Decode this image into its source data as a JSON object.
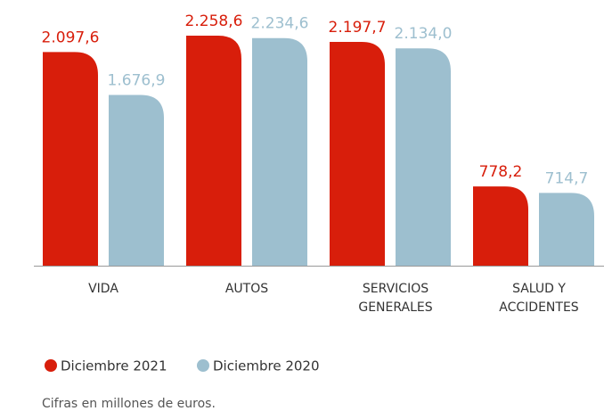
{
  "chart_data": {
    "type": "bar",
    "categories": [
      "VIDA",
      "AUTOS",
      "SERVICIOS GENERALES",
      "SALUD Y ACCIDENTES"
    ],
    "series": [
      {
        "name": "Diciembre 2021",
        "color": "#d81e0b",
        "values": [
          2097.6,
          2258.6,
          2197.7,
          778.2
        ],
        "value_labels": [
          "2.097,6",
          "2.258,6",
          "2.197,7",
          "778,2"
        ]
      },
      {
        "name": "Diciembre 2020",
        "color": "#9dbfcf",
        "values": [
          1676.9,
          2234.6,
          2134.0,
          714.7
        ],
        "value_labels": [
          "1.676,9",
          "2.234,6",
          "2.134,0",
          "714,7"
        ]
      }
    ],
    "legend": "bottom-left",
    "note": "Cifras en millones de euros."
  }
}
